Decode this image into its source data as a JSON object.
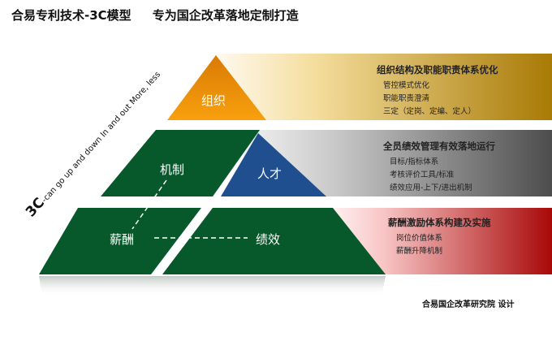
{
  "title": "合易专利技术-3C模型     专为国企改革落地定制打造",
  "diagonal": {
    "big": "3C",
    "small": "-can go up and down  In and out  More, less"
  },
  "layers": [
    {
      "name": "组织",
      "heading": "组织结构及职能职责体系优化",
      "items": [
        "管控模式优化",
        "职能职责澄清",
        "三定（定岗、定编、定人）"
      ],
      "color": "#f0960a"
    },
    {
      "name": "人才",
      "heading": "全员绩效管理有效落地运行",
      "items": [
        "目标/指标体系",
        "考核评价工具/标准",
        "绩效应用-上下/进出机制"
      ],
      "color": "#1f4f8f"
    },
    {
      "name": "机制",
      "heading": "薪酬激励体系构建及实施",
      "items": [
        "岗位价值体系",
        "薪酬升降机制"
      ],
      "color": "#07592b"
    }
  ],
  "labels": {
    "salary": "薪酬",
    "performance": "绩效"
  },
  "footer": "合易国企改革研究院  设计"
}
